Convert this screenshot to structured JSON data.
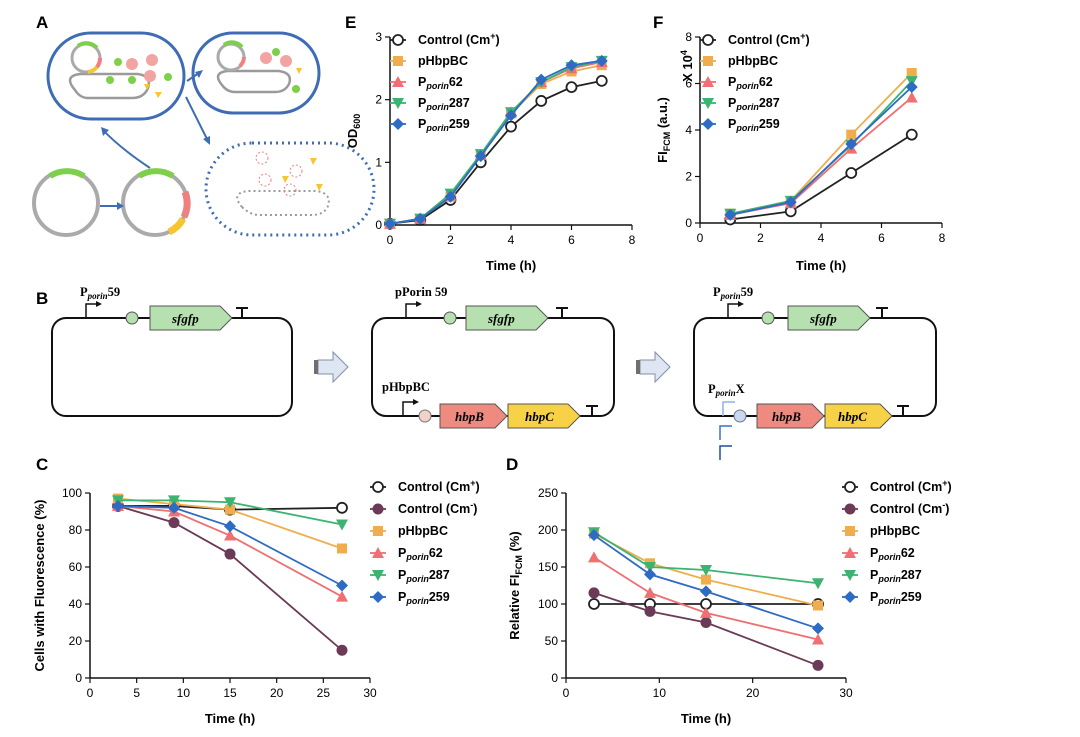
{
  "panels": {
    "A": "A",
    "B": "B",
    "C": "C",
    "D": "D",
    "E": "E",
    "F": "F"
  },
  "constructs": {
    "c1": {
      "promoter": "P",
      "promoter_sub": "porin",
      "promoter_suffix": "59",
      "gene1": "sfgfp"
    },
    "c2": {
      "promoter": "pPorin 59",
      "gene1": "sfgfp",
      "promoter2": "pHbpBC",
      "gene2": "hbpB",
      "gene3": "hbpC"
    },
    "c3": {
      "promoter": "P",
      "promoter_sub": "porin",
      "promoter_suffix": "59",
      "gene1": "sfgfp",
      "promoter2": "P",
      "promoter2_sub": "porin",
      "promoter2_suffix": "X",
      "gene2": "hbpB",
      "gene3": "hbpC"
    }
  },
  "colors": {
    "control": "#222222",
    "control_minus": "#6b3a57",
    "phbpbc": "#f0ad4e",
    "p62": "#ef6f73",
    "p287": "#3cb371",
    "p259": "#2e6bc4",
    "cell_outline": "#3f6db5",
    "membrane": "#aaaaaa",
    "green_part": "#7ed04b",
    "pink_part": "#f08080",
    "yellow_part": "#f7c531",
    "sfgfp_fill": "#b7e0b0",
    "hbpb_fill": "#ef8a80",
    "hbpc_fill": "#f7d247"
  },
  "chart_data": [
    {
      "id": "E",
      "type": "line",
      "xlabel": "Time (h)",
      "ylabel": "OD",
      "ylabel_sub": "600",
      "xlim": [
        0,
        8
      ],
      "ylim": [
        0,
        3
      ],
      "xticks": [
        "0",
        "2",
        "4",
        "6",
        "8"
      ],
      "yticks": [
        "0",
        "1",
        "2",
        "3"
      ],
      "legend_position": "top-left",
      "series": [
        {
          "name": "Control (Cm",
          "sup": "+",
          "tail": ")",
          "marker": "circle-open",
          "color": "#222222",
          "x": [
            0,
            1,
            2,
            3,
            4,
            5,
            6,
            7
          ],
          "y": [
            0.02,
            0.08,
            0.4,
            1.0,
            1.57,
            1.98,
            2.2,
            2.3
          ]
        },
        {
          "name": "pHbpBC",
          "marker": "square",
          "color": "#f0ad4e",
          "x": [
            0,
            1,
            2,
            3,
            4,
            5,
            6,
            7
          ],
          "y": [
            0.02,
            0.1,
            0.45,
            1.12,
            1.78,
            2.25,
            2.45,
            2.55
          ]
        },
        {
          "name": "P",
          "sub": "porin",
          "tail": "62",
          "marker": "triangle-up",
          "color": "#ef6f73",
          "x": [
            0,
            1,
            2,
            3,
            4,
            5,
            6,
            7
          ],
          "y": [
            0.02,
            0.1,
            0.47,
            1.12,
            1.8,
            2.28,
            2.5,
            2.6
          ]
        },
        {
          "name": "P",
          "sub": "porin",
          "tail": "287",
          "marker": "triangle-down",
          "color": "#3cb371",
          "x": [
            0,
            1,
            2,
            3,
            4,
            5,
            6,
            7
          ],
          "y": [
            0.02,
            0.1,
            0.5,
            1.13,
            1.8,
            2.28,
            2.52,
            2.62
          ]
        },
        {
          "name": "P",
          "sub": "porin",
          "tail": "259",
          "marker": "diamond",
          "color": "#2e6bc4",
          "x": [
            0,
            1,
            2,
            3,
            4,
            5,
            6,
            7
          ],
          "y": [
            0.02,
            0.1,
            0.45,
            1.1,
            1.75,
            2.32,
            2.55,
            2.62
          ]
        }
      ]
    },
    {
      "id": "F",
      "type": "line",
      "xlabel": "Time (h)",
      "ylabel": "FI",
      "ylabel_sub": "FCM",
      "ylabel_tail": " (a.u.)",
      "y_multiplier": "X 10",
      "y_multiplier_sup": "4",
      "xlim": [
        0,
        8
      ],
      "ylim": [
        0,
        8
      ],
      "xticks": [
        "0",
        "2",
        "4",
        "6",
        "8"
      ],
      "yticks": [
        "0",
        "2",
        "4",
        "6",
        "8"
      ],
      "legend_position": "top-left",
      "series": [
        {
          "name": "Control (Cm",
          "sup": "+",
          "tail": ")",
          "marker": "circle-open",
          "color": "#222222",
          "x": [
            1,
            3,
            5,
            7
          ],
          "y": [
            0.15,
            0.5,
            2.15,
            3.8
          ]
        },
        {
          "name": "pHbpBC",
          "marker": "square",
          "color": "#f0ad4e",
          "x": [
            1,
            3,
            5,
            7
          ],
          "y": [
            0.4,
            0.95,
            3.8,
            6.45
          ]
        },
        {
          "name": "P",
          "sub": "porin",
          "tail": "62",
          "marker": "triangle-up",
          "color": "#ef6f73",
          "x": [
            1,
            3,
            5,
            7
          ],
          "y": [
            0.35,
            0.85,
            3.2,
            5.4
          ]
        },
        {
          "name": "P",
          "sub": "porin",
          "tail": "287",
          "marker": "triangle-down",
          "color": "#3cb371",
          "x": [
            1,
            3,
            5,
            7
          ],
          "y": [
            0.4,
            0.95,
            3.35,
            6.1
          ]
        },
        {
          "name": "P",
          "sub": "porin",
          "tail": "259",
          "marker": "diamond",
          "color": "#2e6bc4",
          "x": [
            1,
            3,
            5,
            7
          ],
          "y": [
            0.35,
            0.9,
            3.4,
            5.85
          ]
        }
      ]
    },
    {
      "id": "C",
      "type": "line",
      "xlabel": "Time (h)",
      "ylabel": "Cells with Fluorescence (%)",
      "xlim": [
        0,
        30
      ],
      "ylim": [
        0,
        100
      ],
      "xticks": [
        "0",
        "5",
        "10",
        "15",
        "20",
        "25",
        "30"
      ],
      "yticks": [
        "0",
        "20",
        "40",
        "60",
        "80",
        "100"
      ],
      "legend_position": "right",
      "series": [
        {
          "name": "Control (Cm",
          "sup": "+",
          "tail": ")",
          "marker": "circle-open",
          "color": "#222222",
          "x": [
            3,
            9,
            15,
            27
          ],
          "y": [
            93,
            93,
            91,
            92
          ]
        },
        {
          "name": "Control (Cm",
          "sup": "-",
          "tail": ")",
          "marker": "circle",
          "color": "#6b3a57",
          "x": [
            3,
            9,
            15,
            27
          ],
          "y": [
            93,
            84,
            67,
            15
          ]
        },
        {
          "name": "pHbpBC",
          "marker": "square",
          "color": "#f0ad4e",
          "x": [
            3,
            9,
            15,
            27
          ],
          "y": [
            97,
            94,
            91,
            70
          ]
        },
        {
          "name": "P",
          "sub": "porin",
          "tail": "62",
          "marker": "triangle-up",
          "color": "#ef6f73",
          "x": [
            3,
            9,
            15,
            27
          ],
          "y": [
            93,
            90,
            77,
            44
          ]
        },
        {
          "name": "P",
          "sub": "porin",
          "tail": "287",
          "marker": "triangle-down",
          "color": "#3cb371",
          "x": [
            3,
            9,
            15,
            27
          ],
          "y": [
            96,
            96,
            95,
            83
          ]
        },
        {
          "name": "P",
          "sub": "porin",
          "tail": "259",
          "marker": "diamond",
          "color": "#2e6bc4",
          "x": [
            3,
            9,
            15,
            27
          ],
          "y": [
            93,
            92,
            82,
            50
          ]
        }
      ]
    },
    {
      "id": "D",
      "type": "line",
      "xlabel": "Time (h)",
      "ylabel": "Relative FI",
      "ylabel_sub": "FCM",
      "ylabel_tail": " (%)",
      "xlim": [
        0,
        30
      ],
      "ylim": [
        0,
        250
      ],
      "xticks": [
        "0",
        "10",
        "20",
        "30"
      ],
      "yticks": [
        "0",
        "50",
        "100",
        "150",
        "200",
        "250"
      ],
      "legend_position": "right",
      "series": [
        {
          "name": "Control (Cm",
          "sup": "+",
          "tail": ")",
          "marker": "circle-open",
          "color": "#222222",
          "x": [
            3,
            9,
            15,
            27
          ],
          "y": [
            100,
            100,
            100,
            100
          ]
        },
        {
          "name": "Control (Cm",
          "sup": "-",
          "tail": ")",
          "marker": "circle",
          "color": "#6b3a57",
          "x": [
            3,
            9,
            15,
            27
          ],
          "y": [
            115,
            90,
            75,
            17
          ]
        },
        {
          "name": "pHbpBC",
          "marker": "square",
          "color": "#f0ad4e",
          "x": [
            3,
            9,
            15,
            27
          ],
          "y": [
            195,
            155,
            133,
            98
          ]
        },
        {
          "name": "P",
          "sub": "porin",
          "tail": "62",
          "marker": "triangle-up",
          "color": "#ef6f73",
          "x": [
            3,
            9,
            15,
            27
          ],
          "y": [
            163,
            115,
            88,
            52
          ]
        },
        {
          "name": "P",
          "sub": "porin",
          "tail": "287",
          "marker": "triangle-down",
          "color": "#3cb371",
          "x": [
            3,
            9,
            15,
            27
          ],
          "y": [
            197,
            150,
            146,
            128
          ]
        },
        {
          "name": "P",
          "sub": "porin",
          "tail": "259",
          "marker": "diamond",
          "color": "#2e6bc4",
          "x": [
            3,
            9,
            15,
            27
          ],
          "y": [
            193,
            140,
            117,
            67
          ]
        }
      ]
    }
  ]
}
